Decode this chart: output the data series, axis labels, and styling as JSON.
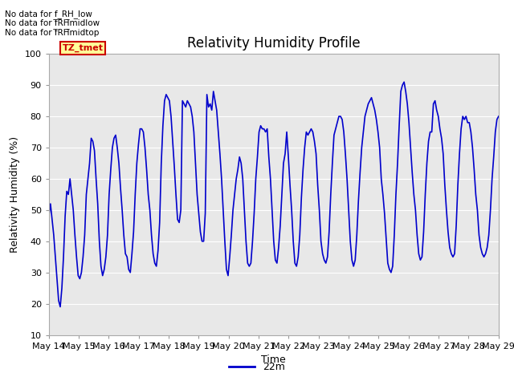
{
  "title": "Relativity Humidity Profile",
  "ylabel": "Relativity Humidity (%)",
  "xlabel": "Time",
  "ylim": [
    10,
    100
  ],
  "yticks": [
    10,
    20,
    30,
    40,
    50,
    60,
    70,
    80,
    90,
    100
  ],
  "line_color": "#0000cc",
  "line_label": "22m",
  "legend_box_color": "#ffff99",
  "legend_box_edge": "#cc0000",
  "legend_text_color": "#cc0000",
  "no_data_labels": [
    "No data for f_RH_low",
    "No data for f̲RH̲midlow",
    "No data for f̲RH̲midtop"
  ],
  "tz_label": "TZ_tmet",
  "bg_color": "#e8e8e8",
  "x_tick_labels": [
    "May 14",
    "May 15",
    "May 16",
    "May 17",
    "May 18",
    "May 19",
    "May 20",
    "May 21",
    "May 22",
    "May 23",
    "May 24",
    "May 25",
    "May 26",
    "May 27",
    "May 28",
    "May 29"
  ],
  "y_values": [
    48,
    52,
    47,
    42,
    35,
    28,
    21,
    19,
    25,
    35,
    48,
    56,
    55,
    60,
    55,
    50,
    42,
    35,
    29,
    28,
    30,
    35,
    42,
    55,
    60,
    65,
    73,
    72,
    69,
    60,
    52,
    40,
    32,
    29,
    31,
    35,
    42,
    55,
    63,
    70,
    73,
    74,
    70,
    65,
    57,
    50,
    42,
    36,
    35,
    31,
    30,
    36,
    43,
    55,
    65,
    71,
    76,
    76,
    75,
    70,
    63,
    55,
    50,
    42,
    36,
    33,
    32,
    37,
    46,
    65,
    77,
    85,
    87,
    86,
    85,
    80,
    72,
    64,
    55,
    47,
    46,
    50,
    85,
    84,
    83,
    85,
    84,
    83,
    80,
    75,
    65,
    55,
    49,
    43,
    40,
    40,
    49,
    87,
    83,
    84,
    82,
    88,
    85,
    82,
    75,
    68,
    60,
    50,
    40,
    31,
    29,
    35,
    42,
    50,
    55,
    60,
    63,
    67,
    65,
    60,
    50,
    40,
    33,
    32,
    33,
    40,
    49,
    60,
    67,
    75,
    77,
    76,
    76,
    75,
    76,
    67,
    60,
    50,
    40,
    34,
    33,
    38,
    45,
    55,
    65,
    68,
    75,
    67,
    58,
    50,
    40,
    33,
    32,
    35,
    42,
    54,
    63,
    70,
    75,
    74,
    75,
    76,
    75,
    72,
    68,
    58,
    50,
    40,
    36,
    34,
    33,
    35,
    43,
    55,
    65,
    74,
    76,
    78,
    80,
    80,
    79,
    75,
    68,
    60,
    50,
    40,
    34,
    32,
    34,
    42,
    53,
    62,
    70,
    75,
    80,
    82,
    84,
    85,
    86,
    84,
    82,
    79,
    75,
    70,
    60,
    55,
    49,
    41,
    33,
    31,
    30,
    32,
    42,
    55,
    65,
    77,
    88,
    90,
    91,
    88,
    84,
    78,
    70,
    62,
    55,
    50,
    42,
    36,
    34,
    35,
    43,
    55,
    65,
    72,
    75,
    75,
    84,
    85,
    82,
    80,
    76,
    73,
    68,
    58,
    50,
    43,
    38,
    36,
    35,
    36,
    45,
    58,
    68,
    76,
    80,
    79,
    80,
    78,
    78,
    75,
    70,
    63,
    55,
    50,
    42,
    38,
    36,
    35,
    36,
    38,
    42,
    50,
    60,
    67,
    75,
    79,
    80
  ]
}
